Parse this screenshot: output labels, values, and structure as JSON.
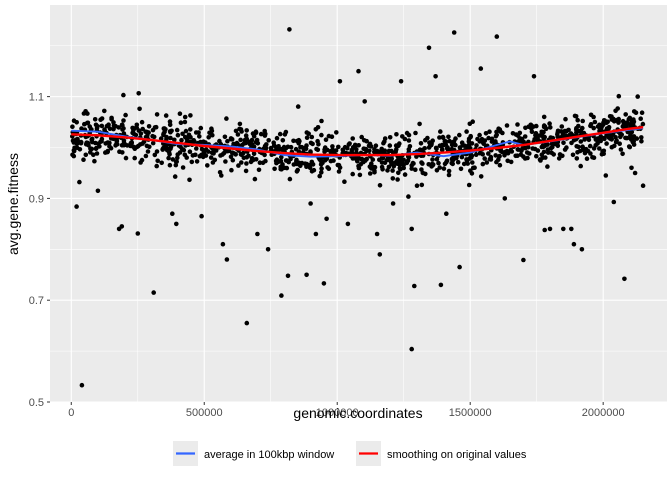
{
  "chart_data": {
    "type": "scatter",
    "title": "",
    "xlabel": "genomic.coordinates",
    "ylabel": "avg.gene.fitness",
    "xlim": [
      -80000,
      2240000
    ],
    "ylim": [
      0.5,
      1.28
    ],
    "x_ticks": [
      0,
      500000,
      1000000,
      1500000,
      2000000
    ],
    "x_tick_labels": [
      "0",
      "500000",
      "1000000",
      "1500000",
      "2000000"
    ],
    "y_ticks": [
      0.5,
      0.7,
      0.9,
      1.1
    ],
    "y_tick_labels": [
      "0.5",
      "0.7",
      "0.9",
      "1.1"
    ],
    "grid": true,
    "legend_position": "bottom",
    "background_color": "#ebebeb",
    "point_color": "#000000",
    "outliers": [
      {
        "x": 40000,
        "y": 0.533
      },
      {
        "x": 20000,
        "y": 0.884
      },
      {
        "x": 100000,
        "y": 0.915
      },
      {
        "x": 180000,
        "y": 0.84
      },
      {
        "x": 190000,
        "y": 0.845
      },
      {
        "x": 250000,
        "y": 0.831
      },
      {
        "x": 310000,
        "y": 0.715
      },
      {
        "x": 380000,
        "y": 0.87
      },
      {
        "x": 395000,
        "y": 0.85
      },
      {
        "x": 490000,
        "y": 0.865
      },
      {
        "x": 570000,
        "y": 0.81
      },
      {
        "x": 585000,
        "y": 0.78
      },
      {
        "x": 660000,
        "y": 0.655
      },
      {
        "x": 700000,
        "y": 0.83
      },
      {
        "x": 740000,
        "y": 0.8
      },
      {
        "x": 790000,
        "y": 0.709
      },
      {
        "x": 815000,
        "y": 0.748
      },
      {
        "x": 820000,
        "y": 1.232
      },
      {
        "x": 885000,
        "y": 0.75
      },
      {
        "x": 900000,
        "y": 0.89
      },
      {
        "x": 920000,
        "y": 0.83
      },
      {
        "x": 950000,
        "y": 0.733
      },
      {
        "x": 960000,
        "y": 0.86
      },
      {
        "x": 1010000,
        "y": 1.13
      },
      {
        "x": 1040000,
        "y": 0.85
      },
      {
        "x": 1080000,
        "y": 1.15
      },
      {
        "x": 1150000,
        "y": 0.83
      },
      {
        "x": 1160000,
        "y": 0.79
      },
      {
        "x": 1210000,
        "y": 0.89
      },
      {
        "x": 1240000,
        "y": 1.13
      },
      {
        "x": 1280000,
        "y": 0.84
      },
      {
        "x": 1290000,
        "y": 0.728
      },
      {
        "x": 1280000,
        "y": 0.604
      },
      {
        "x": 1300000,
        "y": 0.925
      },
      {
        "x": 1345000,
        "y": 1.196
      },
      {
        "x": 1370000,
        "y": 1.14
      },
      {
        "x": 1390000,
        "y": 0.73
      },
      {
        "x": 1410000,
        "y": 0.87
      },
      {
        "x": 1440000,
        "y": 1.226
      },
      {
        "x": 1460000,
        "y": 0.765
      },
      {
        "x": 1540000,
        "y": 1.155
      },
      {
        "x": 1600000,
        "y": 1.218
      },
      {
        "x": 1630000,
        "y": 0.9
      },
      {
        "x": 1700000,
        "y": 0.779
      },
      {
        "x": 1740000,
        "y": 1.14
      },
      {
        "x": 1780000,
        "y": 0.838
      },
      {
        "x": 1800000,
        "y": 0.84
      },
      {
        "x": 1850000,
        "y": 0.84
      },
      {
        "x": 1880000,
        "y": 0.84
      },
      {
        "x": 1890000,
        "y": 0.81
      },
      {
        "x": 1920000,
        "y": 0.8
      },
      {
        "x": 2010000,
        "y": 0.945
      },
      {
        "x": 2040000,
        "y": 0.893
      },
      {
        "x": 2080000,
        "y": 0.742
      },
      {
        "x": 2120000,
        "y": 0.95
      },
      {
        "x": 2150000,
        "y": 0.925
      },
      {
        "x": 2130000,
        "y": 1.1
      }
    ],
    "dense_band_generator": {
      "x_min": 0,
      "x_max": 2150000,
      "count": 1250,
      "description": "dense cloud of points around the smoothing curve, spread roughly +/- 0.06"
    },
    "series": [
      {
        "name": "average in 100kbp window",
        "color": "#3366ff",
        "x": [
          0,
          100000,
          200000,
          300000,
          400000,
          500000,
          600000,
          700000,
          800000,
          900000,
          1000000,
          1100000,
          1200000,
          1300000,
          1400000,
          1500000,
          1600000,
          1650000,
          1700000,
          1800000,
          1900000,
          2000000,
          2100000,
          2150000
        ],
        "y": [
          1.033,
          1.031,
          1.022,
          1.015,
          1.007,
          1.005,
          1.002,
          0.996,
          0.985,
          0.982,
          0.983,
          0.985,
          0.984,
          0.99,
          0.983,
          0.99,
          1.005,
          1.012,
          1.005,
          1.012,
          1.02,
          1.028,
          1.035,
          1.038
        ]
      },
      {
        "name": "smoothing on original values",
        "color": "#ff0000",
        "x": [
          0,
          100000,
          200000,
          300000,
          400000,
          500000,
          600000,
          700000,
          800000,
          900000,
          1000000,
          1100000,
          1200000,
          1300000,
          1400000,
          1500000,
          1600000,
          1700000,
          1800000,
          1900000,
          2000000,
          2100000,
          2150000
        ],
        "y": [
          1.026,
          1.024,
          1.02,
          1.015,
          1.009,
          1.003,
          0.998,
          0.993,
          0.989,
          0.986,
          0.985,
          0.985,
          0.985,
          0.987,
          0.99,
          0.994,
          0.999,
          1.005,
          1.013,
          1.021,
          1.029,
          1.037,
          1.04
        ]
      }
    ]
  }
}
